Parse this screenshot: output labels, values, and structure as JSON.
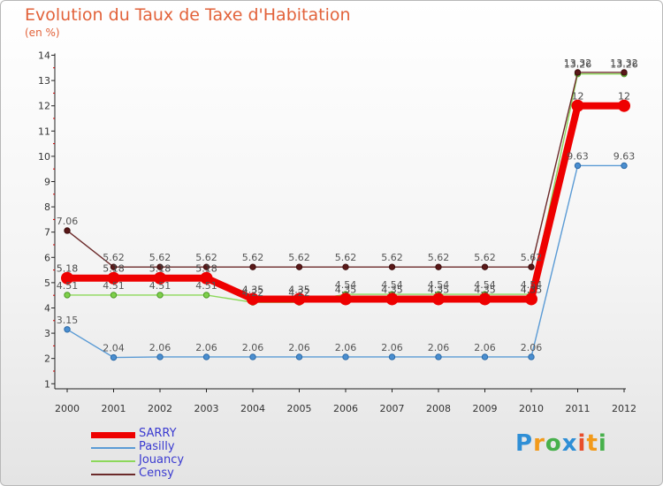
{
  "chart_data": {
    "type": "line",
    "title": "Evolution du Taux de Taxe d'Habitation",
    "subtitle": "(en %)",
    "xlabel": "",
    "ylabel": "",
    "categories": [
      "2000",
      "2001",
      "2002",
      "2003",
      "2004",
      "2005",
      "2006",
      "2007",
      "2008",
      "2009",
      "2010",
      "2011",
      "2012"
    ],
    "y_ticks": [
      "1",
      "2",
      "3",
      "4",
      "5",
      "6",
      "7",
      "8",
      "9",
      "10",
      "11",
      "12",
      "13",
      "14"
    ],
    "ylim": [
      0.8,
      14
    ],
    "grid": false,
    "legend_position": "bottom-left",
    "series": [
      {
        "name": "SARRY",
        "color": "#ee0000",
        "values": [
          5.18,
          5.18,
          5.18,
          5.18,
          4.35,
          4.35,
          4.35,
          4.35,
          4.35,
          4.35,
          4.35,
          12,
          12
        ],
        "labels": [
          "5.18",
          "5.18",
          "5.18",
          "5.18",
          "4.35",
          "4.35",
          "4.35",
          "4.35",
          "4.35",
          "4.35",
          "4.35",
          "12",
          "12"
        ]
      },
      {
        "name": "Pasilly",
        "color": "#5b9bd5",
        "values": [
          3.15,
          2.04,
          2.06,
          2.06,
          2.06,
          2.06,
          2.06,
          2.06,
          2.06,
          2.06,
          2.06,
          9.63,
          9.63
        ],
        "labels": [
          "3.15",
          "2.04",
          "2.06",
          "2.06",
          "2.06",
          "2.06",
          "2.06",
          "2.06",
          "2.06",
          "2.06",
          "2.06",
          "9.63",
          "9.63"
        ]
      },
      {
        "name": "Jouancy",
        "color": "#8cd85a",
        "values": [
          4.51,
          4.51,
          4.51,
          4.51,
          4.22,
          4.22,
          4.54,
          4.54,
          4.54,
          4.54,
          4.54,
          13.26,
          13.26
        ],
        "labels": [
          "4.51",
          "4.51",
          "4.51",
          "4.51",
          "4.22",
          "4.22",
          "4.54",
          "4.54",
          "4.54",
          "4.54",
          "4.54",
          "13.26",
          "13.26"
        ]
      },
      {
        "name": "Censy",
        "color": "#6b2a2a",
        "values": [
          7.06,
          5.62,
          5.62,
          5.62,
          5.62,
          5.62,
          5.62,
          5.62,
          5.62,
          5.62,
          5.62,
          13.32,
          13.32
        ],
        "labels": [
          "7.06",
          "5.62",
          "5.62",
          "5.62",
          "5.62",
          "5.62",
          "5.62",
          "5.62",
          "5.62",
          "5.62",
          "5.62",
          "13.32",
          "13.32"
        ]
      }
    ]
  },
  "logo": {
    "letters": [
      "P",
      "r",
      "o",
      "x",
      "i",
      "t",
      "i"
    ],
    "colors": [
      "#2f8fd6",
      "#f29a1a",
      "#47b04b",
      "#2f8fd6",
      "#e84e2c",
      "#f29a1a",
      "#47b04b"
    ]
  }
}
